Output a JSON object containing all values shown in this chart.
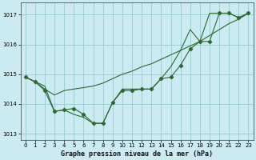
{
  "background_color": "#cceaf2",
  "plot_bg_color": "#cceaf2",
  "grid_color": "#99cccc",
  "line_color": "#2d6a2d",
  "ylim": [
    1012.8,
    1017.4
  ],
  "xlim": [
    -0.5,
    23.5
  ],
  "yticks": [
    1013,
    1014,
    1015,
    1016,
    1017
  ],
  "xticks": [
    0,
    1,
    2,
    3,
    4,
    5,
    6,
    7,
    8,
    9,
    10,
    11,
    12,
    13,
    14,
    15,
    16,
    17,
    18,
    19,
    20,
    21,
    22,
    23
  ],
  "title": "Graphe pression niveau de la mer (hPa)",
  "series1_x": [
    0,
    1,
    2,
    3,
    4,
    5,
    6,
    7,
    8,
    9,
    10,
    11,
    12,
    13,
    14,
    15,
    16,
    17,
    18,
    19,
    20,
    21,
    22,
    23
  ],
  "series1_y": [
    1014.9,
    1014.75,
    1014.45,
    1013.75,
    1013.8,
    1013.85,
    1013.65,
    1013.35,
    1013.35,
    1014.05,
    1014.45,
    1014.45,
    1014.5,
    1014.5,
    1014.85,
    1014.9,
    1015.3,
    1015.85,
    1016.1,
    1016.1,
    1017.05,
    1017.05,
    1016.9,
    1017.05
  ],
  "series2_x": [
    0,
    1,
    2,
    3,
    4,
    5,
    6,
    7,
    8,
    9,
    10,
    11,
    12,
    13,
    14,
    15,
    16,
    17,
    18,
    19,
    20,
    21,
    22,
    23
  ],
  "series2_y": [
    1014.9,
    1014.75,
    1014.5,
    1014.3,
    1014.45,
    1014.5,
    1014.55,
    1014.6,
    1014.7,
    1014.85,
    1015.0,
    1015.1,
    1015.25,
    1015.35,
    1015.5,
    1015.65,
    1015.8,
    1015.95,
    1016.1,
    1016.3,
    1016.5,
    1016.7,
    1016.85,
    1017.05
  ],
  "series3_x": [
    0,
    2,
    3,
    4,
    5,
    6,
    7,
    8,
    9,
    10,
    11,
    12,
    13,
    14,
    15,
    16,
    17,
    18,
    19,
    20,
    21,
    22,
    23
  ],
  "series3_y": [
    1014.9,
    1014.6,
    1013.75,
    1013.8,
    1013.65,
    1013.55,
    1013.35,
    1013.35,
    1014.05,
    1014.5,
    1014.5,
    1014.5,
    1014.5,
    1014.85,
    1015.25,
    1015.8,
    1016.5,
    1016.1,
    1017.05,
    1017.05,
    1017.05,
    1016.9,
    1017.05
  ]
}
